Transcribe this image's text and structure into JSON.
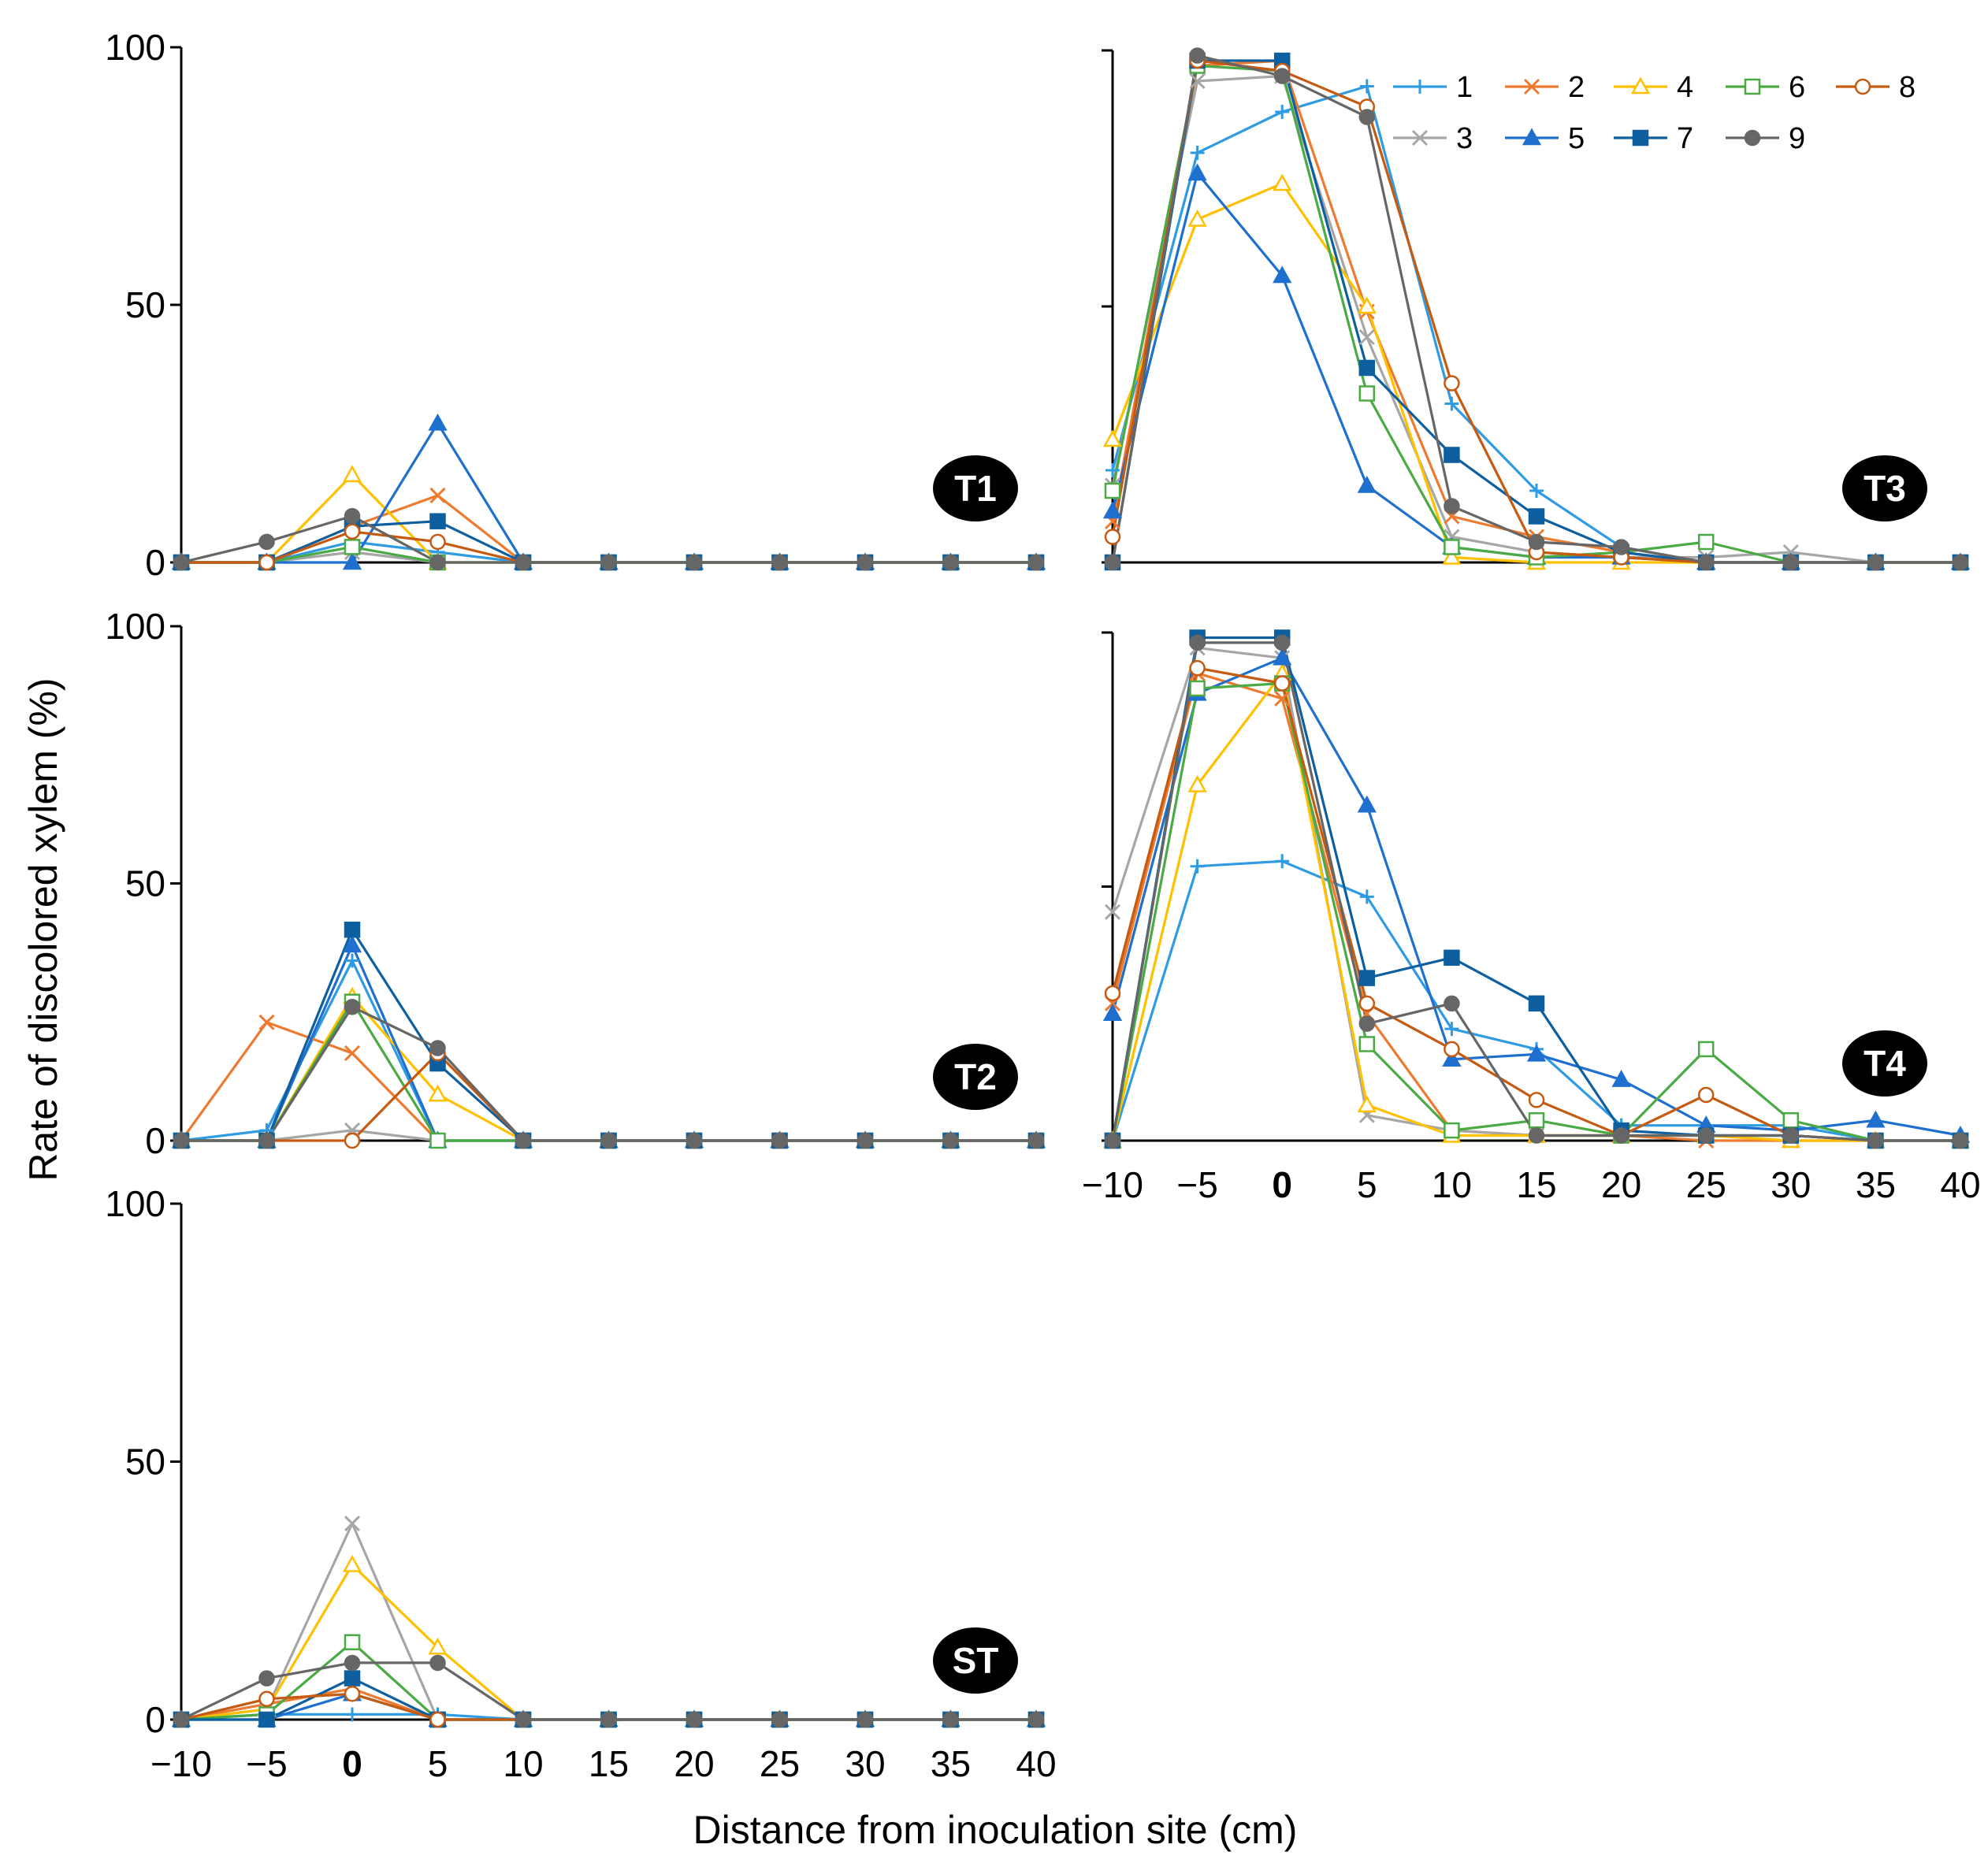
{
  "chart_data": {
    "type": "line",
    "ylabel": "Rate of discolored xylem (%)",
    "xlabel": "Distance from inoculation site (cm)",
    "x": [
      -10,
      -5,
      0,
      5,
      10,
      15,
      20,
      25,
      30,
      35,
      40
    ],
    "x_tick_labels": [
      "−10",
      "−5",
      "0",
      "5",
      "10",
      "15",
      "20",
      "25",
      "30",
      "35",
      "40"
    ],
    "highlight_tick": "0",
    "highlight_color": "#e8141b",
    "ylim": [
      0,
      100
    ],
    "y_ticks": [
      0,
      50,
      100
    ],
    "y_tick_labels": [
      "0",
      "50",
      "100"
    ],
    "legend_entries": [
      {
        "name": "1",
        "color": "#2f9be3",
        "marker": "plus"
      },
      {
        "name": "2",
        "color": "#ee7a30",
        "marker": "x"
      },
      {
        "name": "3",
        "color": "#a6a6a6",
        "marker": "x"
      },
      {
        "name": "4",
        "color": "#ffc000",
        "marker": "triangle-open"
      },
      {
        "name": "5",
        "color": "#1f6fcf",
        "marker": "triangle"
      },
      {
        "name": "6",
        "color": "#4aaa44",
        "marker": "square-open"
      },
      {
        "name": "7",
        "color": "#0e5f9f",
        "marker": "square"
      },
      {
        "name": "8",
        "color": "#c55a11",
        "marker": "circle-open"
      },
      {
        "name": "9",
        "color": "#666666",
        "marker": "circle"
      }
    ],
    "panels": [
      {
        "label": "T1",
        "series": [
          {
            "name": "1",
            "values": [
              0,
              0,
              4,
              2,
              0,
              0,
              0,
              0,
              0,
              0,
              0
            ]
          },
          {
            "name": "2",
            "values": [
              0,
              0,
              7,
              13,
              0,
              0,
              0,
              0,
              0,
              0,
              0
            ]
          },
          {
            "name": "3",
            "values": [
              0,
              0,
              2,
              0,
              0,
              0,
              0,
              0,
              0,
              0,
              0
            ]
          },
          {
            "name": "4",
            "values": [
              0,
              0,
              17,
              0,
              0,
              0,
              0,
              0,
              0,
              0,
              0
            ]
          },
          {
            "name": "5",
            "values": [
              0,
              0,
              0,
              27,
              0,
              0,
              0,
              0,
              0,
              0,
              0
            ]
          },
          {
            "name": "6",
            "values": [
              0,
              0,
              3,
              0,
              0,
              0,
              0,
              0,
              0,
              0,
              0
            ]
          },
          {
            "name": "7",
            "values": [
              0,
              0,
              7,
              8,
              0,
              0,
              0,
              0,
              0,
              0,
              0
            ]
          },
          {
            "name": "8",
            "values": [
              0,
              0,
              6,
              4,
              0,
              0,
              0,
              0,
              0,
              0,
              0
            ]
          },
          {
            "name": "9",
            "values": [
              0,
              4,
              9,
              0,
              0,
              0,
              0,
              0,
              0,
              0,
              0
            ]
          }
        ]
      },
      {
        "label": "T3",
        "series": [
          {
            "name": "1",
            "values": [
              18,
              80,
              88,
              93,
              31,
              14,
              3,
              0,
              0,
              0,
              0
            ]
          },
          {
            "name": "2",
            "values": [
              8,
              97,
              98,
              49,
              9,
              5,
              2,
              0,
              0,
              0,
              0
            ]
          },
          {
            "name": "3",
            "values": [
              15,
              94,
              95,
              44,
              5,
              2,
              1,
              1,
              2,
              0,
              0
            ]
          },
          {
            "name": "4",
            "values": [
              24,
              67,
              74,
              50,
              1,
              0,
              0,
              0,
              0,
              0,
              0
            ]
          },
          {
            "name": "5",
            "values": [
              10,
              76,
              56,
              15,
              3,
              1,
              1,
              0,
              0,
              0,
              0
            ]
          },
          {
            "name": "6",
            "values": [
              14,
              97,
              96,
              33,
              3,
              1,
              2,
              4,
              0,
              0,
              0
            ]
          },
          {
            "name": "7",
            "values": [
              0,
              98,
              98,
              38,
              21,
              9,
              2,
              0,
              0,
              0,
              0
            ]
          },
          {
            "name": "8",
            "values": [
              5,
              98,
              96,
              89,
              35,
              2,
              1,
              0,
              0,
              0,
              0
            ]
          },
          {
            "name": "9",
            "values": [
              0,
              99,
              95,
              87,
              11,
              4,
              3,
              0,
              0,
              0,
              0
            ]
          }
        ]
      },
      {
        "label": "T2",
        "series": [
          {
            "name": "1",
            "values": [
              0,
              2,
              35,
              0,
              0,
              0,
              0,
              0,
              0,
              0,
              0
            ]
          },
          {
            "name": "2",
            "values": [
              0,
              23,
              17,
              0,
              0,
              0,
              0,
              0,
              0,
              0,
              0
            ]
          },
          {
            "name": "3",
            "values": [
              0,
              0,
              2,
              0,
              0,
              0,
              0,
              0,
              0,
              0,
              0
            ]
          },
          {
            "name": "4",
            "values": [
              0,
              0,
              28,
              9,
              0,
              0,
              0,
              0,
              0,
              0,
              0
            ]
          },
          {
            "name": "5",
            "values": [
              0,
              0,
              38,
              0,
              0,
              0,
              0,
              0,
              0,
              0,
              0
            ]
          },
          {
            "name": "6",
            "values": [
              0,
              0,
              27,
              0,
              0,
              0,
              0,
              0,
              0,
              0,
              0
            ]
          },
          {
            "name": "7",
            "values": [
              0,
              0,
              41,
              15,
              0,
              0,
              0,
              0,
              0,
              0,
              0
            ]
          },
          {
            "name": "8",
            "values": [
              0,
              0,
              0,
              17,
              0,
              0,
              0,
              0,
              0,
              0,
              0
            ]
          },
          {
            "name": "9",
            "values": [
              0,
              0,
              26,
              18,
              0,
              0,
              0,
              0,
              0,
              0,
              0
            ]
          }
        ]
      },
      {
        "label": "T4",
        "series": [
          {
            "name": "1",
            "values": [
              0,
              54,
              55,
              48,
              22,
              18,
              3,
              3,
              3,
              0,
              0
            ]
          },
          {
            "name": "2",
            "values": [
              27,
              92,
              87,
              25,
              2,
              1,
              1,
              0,
              0,
              0,
              0
            ]
          },
          {
            "name": "3",
            "values": [
              45,
              97,
              95,
              5,
              2,
              1,
              1,
              1,
              1,
              0,
              0
            ]
          },
          {
            "name": "4",
            "values": [
              0,
              70,
              92,
              7,
              1,
              1,
              1,
              1,
              0,
              0,
              0
            ]
          },
          {
            "name": "5",
            "values": [
              25,
              88,
              95,
              66,
              16,
              17,
              12,
              3,
              2,
              4,
              1
            ]
          },
          {
            "name": "6",
            "values": [
              0,
              89,
              90,
              19,
              2,
              4,
              1,
              18,
              4,
              0,
              0
            ]
          },
          {
            "name": "7",
            "values": [
              0,
              99,
              99,
              32,
              36,
              27,
              2,
              1,
              1,
              0,
              0
            ]
          },
          {
            "name": "8",
            "values": [
              29,
              93,
              90,
              27,
              18,
              8,
              1,
              9,
              1,
              0,
              0
            ]
          },
          {
            "name": "9",
            "values": [
              0,
              98,
              98,
              23,
              27,
              1,
              1,
              1,
              1,
              0,
              0
            ]
          }
        ]
      },
      {
        "label": "ST",
        "series": [
          {
            "name": "1",
            "values": [
              0,
              1,
              1,
              1,
              0,
              0,
              0,
              0,
              0,
              0,
              0
            ]
          },
          {
            "name": "2",
            "values": [
              0,
              3,
              6,
              0,
              0,
              0,
              0,
              0,
              0,
              0,
              0
            ]
          },
          {
            "name": "3",
            "values": [
              0,
              2,
              38,
              0,
              0,
              0,
              0,
              0,
              0,
              0,
              0
            ]
          },
          {
            "name": "4",
            "values": [
              0,
              2,
              30,
              14,
              0,
              0,
              0,
              0,
              0,
              0,
              0
            ]
          },
          {
            "name": "5",
            "values": [
              0,
              0,
              5,
              0,
              0,
              0,
              0,
              0,
              0,
              0,
              0
            ]
          },
          {
            "name": "6",
            "values": [
              0,
              1,
              15,
              0,
              0,
              0,
              0,
              0,
              0,
              0,
              0
            ]
          },
          {
            "name": "7",
            "values": [
              0,
              0,
              8,
              0,
              0,
              0,
              0,
              0,
              0,
              0,
              0
            ]
          },
          {
            "name": "8",
            "values": [
              0,
              4,
              5,
              0,
              0,
              0,
              0,
              0,
              0,
              0,
              0
            ]
          },
          {
            "name": "9",
            "values": [
              0,
              8,
              11,
              11,
              0,
              0,
              0,
              0,
              0,
              0,
              0
            ]
          }
        ]
      }
    ]
  }
}
